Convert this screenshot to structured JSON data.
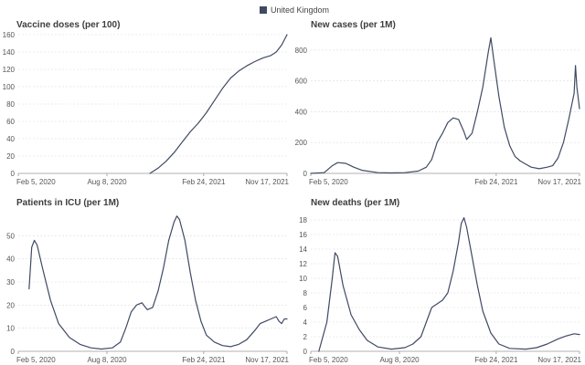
{
  "legend": {
    "label": "United Kingdom",
    "color": "#3f4a63"
  },
  "chart_data": [
    {
      "type": "line",
      "title": "Vaccine doses (per 100)",
      "x_ticks": [
        "Feb 5, 2020",
        "Aug 8, 2020",
        "Feb 24, 2021",
        "Nov 17, 2021"
      ],
      "x_tick_pos": [
        0,
        0.33,
        0.69,
        1
      ],
      "ylim": [
        0,
        160
      ],
      "y_ticks": [
        0,
        20,
        40,
        60,
        80,
        100,
        120,
        140,
        160
      ],
      "series": [
        {
          "name": "United Kingdom",
          "points": [
            [
              0.49,
              0
            ],
            [
              0.52,
              6
            ],
            [
              0.55,
              14
            ],
            [
              0.58,
              24
            ],
            [
              0.61,
              36
            ],
            [
              0.64,
              48
            ],
            [
              0.67,
              58
            ],
            [
              0.7,
              70
            ],
            [
              0.73,
              84
            ],
            [
              0.76,
              98
            ],
            [
              0.79,
              110
            ],
            [
              0.82,
              118
            ],
            [
              0.85,
              124
            ],
            [
              0.88,
              129
            ],
            [
              0.91,
              133
            ],
            [
              0.94,
              136
            ],
            [
              0.96,
              140
            ],
            [
              0.98,
              148
            ],
            [
              1.0,
              160
            ]
          ]
        }
      ]
    },
    {
      "type": "line",
      "title": "New cases (per 1M)",
      "x_ticks": [
        "Feb 5, 2020",
        "Feb 24, 2021",
        "Nov 17, 2021"
      ],
      "x_tick_pos": [
        0,
        0.69,
        1
      ],
      "ylim": [
        0,
        900
      ],
      "y_ticks": [
        0,
        200,
        400,
        600,
        800
      ],
      "series": [
        {
          "name": "United Kingdom",
          "points": [
            [
              0,
              0
            ],
            [
              0.05,
              5
            ],
            [
              0.08,
              50
            ],
            [
              0.1,
              70
            ],
            [
              0.13,
              65
            ],
            [
              0.16,
              40
            ],
            [
              0.19,
              20
            ],
            [
              0.25,
              5
            ],
            [
              0.3,
              3
            ],
            [
              0.35,
              5
            ],
            [
              0.4,
              15
            ],
            [
              0.43,
              40
            ],
            [
              0.45,
              90
            ],
            [
              0.47,
              200
            ],
            [
              0.49,
              260
            ],
            [
              0.51,
              330
            ],
            [
              0.53,
              360
            ],
            [
              0.55,
              350
            ],
            [
              0.57,
              270
            ],
            [
              0.58,
              220
            ],
            [
              0.6,
              260
            ],
            [
              0.62,
              400
            ],
            [
              0.64,
              560
            ],
            [
              0.66,
              780
            ],
            [
              0.67,
              880
            ],
            [
              0.68,
              750
            ],
            [
              0.7,
              500
            ],
            [
              0.72,
              300
            ],
            [
              0.74,
              180
            ],
            [
              0.76,
              110
            ],
            [
              0.78,
              80
            ],
            [
              0.8,
              60
            ],
            [
              0.82,
              40
            ],
            [
              0.85,
              30
            ],
            [
              0.88,
              40
            ],
            [
              0.9,
              50
            ],
            [
              0.92,
              100
            ],
            [
              0.94,
              200
            ],
            [
              0.96,
              350
            ],
            [
              0.98,
              520
            ],
            [
              0.985,
              700
            ],
            [
              0.99,
              560
            ],
            [
              1.0,
              420
            ]
          ]
        }
      ]
    },
    {
      "type": "line",
      "title": "Patients in ICU (per 1M)",
      "x_ticks": [
        "Feb 5, 2020",
        "Aug 8, 2020",
        "Feb 24, 2021",
        "Nov 17, 2021"
      ],
      "x_tick_pos": [
        0,
        0.33,
        0.69,
        1
      ],
      "ylim": [
        0,
        60
      ],
      "y_ticks": [
        0,
        10,
        20,
        30,
        40,
        50
      ],
      "series": [
        {
          "name": "United Kingdom",
          "points": [
            [
              0.04,
              27
            ],
            [
              0.05,
              45
            ],
            [
              0.06,
              48
            ],
            [
              0.07,
              46
            ],
            [
              0.09,
              36
            ],
            [
              0.12,
              22
            ],
            [
              0.15,
              12
            ],
            [
              0.19,
              6
            ],
            [
              0.23,
              3
            ],
            [
              0.27,
              1.5
            ],
            [
              0.31,
              1
            ],
            [
              0.35,
              1.5
            ],
            [
              0.38,
              4
            ],
            [
              0.4,
              10
            ],
            [
              0.42,
              17
            ],
            [
              0.44,
              20
            ],
            [
              0.46,
              21
            ],
            [
              0.48,
              18
            ],
            [
              0.5,
              19
            ],
            [
              0.52,
              26
            ],
            [
              0.54,
              36
            ],
            [
              0.56,
              48
            ],
            [
              0.58,
              56
            ],
            [
              0.59,
              58.5
            ],
            [
              0.6,
              57
            ],
            [
              0.62,
              48
            ],
            [
              0.64,
              34
            ],
            [
              0.66,
              22
            ],
            [
              0.68,
              13
            ],
            [
              0.7,
              7
            ],
            [
              0.73,
              4
            ],
            [
              0.76,
              2.5
            ],
            [
              0.79,
              2
            ],
            [
              0.82,
              3
            ],
            [
              0.85,
              5
            ],
            [
              0.88,
              9
            ],
            [
              0.9,
              12
            ],
            [
              0.92,
              13
            ],
            [
              0.94,
              14
            ],
            [
              0.96,
              15
            ],
            [
              0.97,
              13
            ],
            [
              0.98,
              12
            ],
            [
              0.99,
              14
            ],
            [
              1.0,
              14
            ]
          ]
        }
      ]
    },
    {
      "type": "line",
      "title": "New deaths (per 1M)",
      "x_ticks": [
        "Feb 5, 2020",
        "Aug 8, 2020",
        "Feb 24, 2021",
        "Nov 17, 2021"
      ],
      "x_tick_pos": [
        0,
        0.33,
        0.69,
        1
      ],
      "ylim": [
        0,
        19
      ],
      "y_ticks": [
        0,
        2,
        4,
        6,
        8,
        10,
        12,
        14,
        16,
        18
      ],
      "series": [
        {
          "name": "United Kingdom",
          "points": [
            [
              0.03,
              0
            ],
            [
              0.06,
              4
            ],
            [
              0.08,
              10
            ],
            [
              0.09,
              13.5
            ],
            [
              0.1,
              13
            ],
            [
              0.12,
              9
            ],
            [
              0.15,
              5
            ],
            [
              0.18,
              3
            ],
            [
              0.21,
              1.5
            ],
            [
              0.25,
              0.6
            ],
            [
              0.3,
              0.3
            ],
            [
              0.35,
              0.5
            ],
            [
              0.38,
              1
            ],
            [
              0.41,
              2
            ],
            [
              0.43,
              4
            ],
            [
              0.45,
              6
            ],
            [
              0.47,
              6.5
            ],
            [
              0.49,
              7
            ],
            [
              0.51,
              8
            ],
            [
              0.53,
              11
            ],
            [
              0.55,
              15
            ],
            [
              0.56,
              17.5
            ],
            [
              0.57,
              18.3
            ],
            [
              0.58,
              17
            ],
            [
              0.6,
              13
            ],
            [
              0.62,
              9
            ],
            [
              0.64,
              5.5
            ],
            [
              0.67,
              2.5
            ],
            [
              0.7,
              1
            ],
            [
              0.74,
              0.4
            ],
            [
              0.8,
              0.3
            ],
            [
              0.84,
              0.5
            ],
            [
              0.88,
              1
            ],
            [
              0.92,
              1.7
            ],
            [
              0.95,
              2.1
            ],
            [
              0.98,
              2.4
            ],
            [
              1.0,
              2.3
            ]
          ]
        }
      ]
    }
  ]
}
